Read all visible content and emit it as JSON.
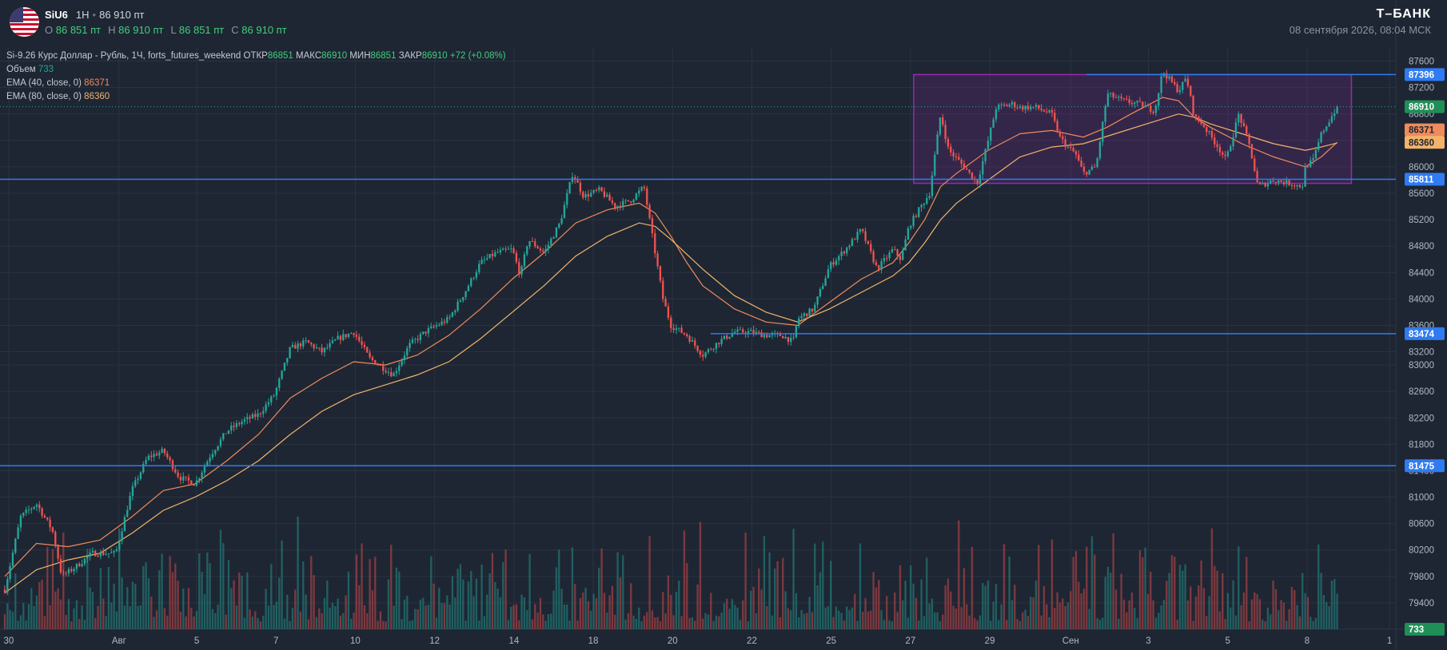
{
  "header": {
    "symbol": "SiU6",
    "interval": "1H",
    "last_price": "86 910 пт",
    "ohlc": {
      "o_label": "O",
      "o": "86 851 пт",
      "h_label": "H",
      "h": "86 910 пт",
      "l_label": "L",
      "l": "86 851 пт",
      "c_label": "C",
      "c": "86 910 пт"
    },
    "brand": "Т–БАНК",
    "datetime": "08 сентября 2026, 08:04 МСК"
  },
  "legend": {
    "series_line": "Si-9.26 Курс Доллар - Рубль, 1Ч, forts_futures_weekend",
    "open_label": "ОТКР",
    "open": "86851",
    "high_label": "МАКС",
    "high": "86910",
    "low_label": "МИН",
    "low": "86851",
    "close_label": "ЗАКР",
    "close": "86910",
    "change": "+72 (+0.08%)",
    "volume_label": "Объем",
    "volume": "733",
    "ema40_label": "EMA (40, close, 0)",
    "ema40": "86371",
    "ema80_label": "EMA (80, close, 0)",
    "ema80": "86360"
  },
  "colors": {
    "background": "#1e2633",
    "grid": "#2a3340",
    "up": "#26a69a",
    "down": "#ef5350",
    "hline": "#2f7bf2",
    "rectangle": "#9c27b0",
    "ema40": "#f08b5c",
    "ema80": "#f2b36b",
    "price_badge": "#1f8f57"
  },
  "chart_data": {
    "type": "candlestick",
    "title": "Si-9.26 Курс Доллар - Рубль, 1Ч, forts_futures_weekend",
    "ylim": [
      79000,
      87800
    ],
    "y_ticks": [
      "87600",
      "87200",
      "86800",
      "86400",
      "86000",
      "85600",
      "85200",
      "84800",
      "84400",
      "84000",
      "83600",
      "83200",
      "83000",
      "82600",
      "82200",
      "81800",
      "81400",
      "81000",
      "80600",
      "80200",
      "79800",
      "79400",
      "79000"
    ],
    "x_ticks": [
      {
        "label": "30",
        "t": 0.25
      },
      {
        "label": "Авг",
        "t": 7.2
      },
      {
        "label": "5",
        "t": 12.1
      },
      {
        "label": "7",
        "t": 17.1
      },
      {
        "label": "10",
        "t": 22.1
      },
      {
        "label": "12",
        "t": 27.1
      },
      {
        "label": "14",
        "t": 32.1
      },
      {
        "label": "18",
        "t": 37.1
      },
      {
        "label": "20",
        "t": 42.1
      },
      {
        "label": "22",
        "t": 47.1
      },
      {
        "label": "25",
        "t": 52.1
      },
      {
        "label": "27",
        "t": 57.1
      },
      {
        "label": "29",
        "t": 62.1
      },
      {
        "label": "Сен",
        "t": 67.2
      },
      {
        "label": "3",
        "t": 72.1
      },
      {
        "label": "5",
        "t": 77.1
      },
      {
        "label": "8",
        "t": 82.1
      },
      {
        "label": "1",
        "t": 87.3
      }
    ],
    "price_path": [
      [
        0,
        79600
      ],
      [
        1,
        80700
      ],
      [
        2,
        80900
      ],
      [
        3,
        80500
      ],
      [
        3.6,
        79800
      ],
      [
        4.5,
        79950
      ],
      [
        5.5,
        80150
      ],
      [
        7,
        80150
      ],
      [
        8,
        81100
      ],
      [
        9,
        81600
      ],
      [
        10,
        81700
      ],
      [
        11,
        81300
      ],
      [
        12,
        81200
      ],
      [
        13,
        81650
      ],
      [
        14,
        82000
      ],
      [
        15,
        82150
      ],
      [
        16,
        82250
      ],
      [
        17,
        82550
      ],
      [
        18,
        83250
      ],
      [
        19,
        83350
      ],
      [
        20,
        83200
      ],
      [
        21,
        83400
      ],
      [
        22,
        83500
      ],
      [
        23,
        83100
      ],
      [
        24.5,
        82850
      ],
      [
        25.5,
        83300
      ],
      [
        26.5,
        83500
      ],
      [
        28,
        83700
      ],
      [
        29,
        84100
      ],
      [
        30,
        84550
      ],
      [
        31,
        84700
      ],
      [
        32,
        84750
      ],
      [
        32.5,
        84350
      ],
      [
        33,
        84900
      ],
      [
        34,
        84700
      ],
      [
        35,
        85150
      ],
      [
        35.8,
        85900
      ],
      [
        36.5,
        85550
      ],
      [
        37.5,
        85650
      ],
      [
        38.5,
        85400
      ],
      [
        39.5,
        85500
      ],
      [
        40.3,
        85700
      ],
      [
        41,
        84700
      ],
      [
        41.5,
        84000
      ],
      [
        42,
        83600
      ],
      [
        43,
        83450
      ],
      [
        44,
        83150
      ],
      [
        45,
        83350
      ],
      [
        46,
        83500
      ],
      [
        47,
        83500
      ],
      [
        48,
        83450
      ],
      [
        49,
        83450
      ],
      [
        49.7,
        83350
      ],
      [
        50,
        83700
      ],
      [
        51,
        83850
      ],
      [
        52,
        84500
      ],
      [
        53,
        84750
      ],
      [
        54,
        85050
      ],
      [
        55,
        84450
      ],
      [
        56,
        84750
      ],
      [
        56.5,
        84600
      ],
      [
        57,
        85100
      ],
      [
        57.5,
        85300
      ],
      [
        58.3,
        85600
      ],
      [
        59,
        86800
      ],
      [
        59.5,
        86250
      ],
      [
        60.5,
        86000
      ],
      [
        61.3,
        85750
      ],
      [
        62,
        86400
      ],
      [
        62.5,
        86900
      ],
      [
        63.5,
        86950
      ],
      [
        64,
        86900
      ],
      [
        65,
        86900
      ],
      [
        66,
        86800
      ],
      [
        66.5,
        86450
      ],
      [
        67,
        86300
      ],
      [
        67.5,
        86200
      ],
      [
        68,
        85900
      ],
      [
        68.8,
        86000
      ],
      [
        69.5,
        87100
      ],
      [
        70.5,
        87000
      ],
      [
        71.5,
        86950
      ],
      [
        72.5,
        86850
      ],
      [
        73,
        87450
      ],
      [
        74,
        87150
      ],
      [
        74.5,
        87350
      ],
      [
        75,
        86750
      ],
      [
        75.5,
        86650
      ],
      [
        76.5,
        86300
      ],
      [
        77,
        86100
      ],
      [
        77.8,
        86800
      ],
      [
        78.5,
        86300
      ],
      [
        79,
        85700
      ],
      [
        80,
        85800
      ],
      [
        81,
        85750
      ],
      [
        81.8,
        85700
      ],
      [
        82,
        86000
      ],
      [
        82.5,
        86100
      ],
      [
        83,
        86500
      ],
      [
        83.5,
        86700
      ],
      [
        84,
        86910
      ]
    ],
    "ema40_path": [
      [
        0,
        79800
      ],
      [
        2,
        80300
      ],
      [
        4,
        80250
      ],
      [
        6,
        80350
      ],
      [
        8,
        80700
      ],
      [
        10,
        81100
      ],
      [
        12,
        81200
      ],
      [
        14,
        81550
      ],
      [
        16,
        81950
      ],
      [
        18,
        82500
      ],
      [
        20,
        82800
      ],
      [
        22,
        83050
      ],
      [
        24,
        83000
      ],
      [
        26,
        83150
      ],
      [
        28,
        83450
      ],
      [
        30,
        83850
      ],
      [
        32,
        84300
      ],
      [
        34,
        84700
      ],
      [
        36,
        85150
      ],
      [
        38,
        85350
      ],
      [
        40,
        85450
      ],
      [
        41,
        85300
      ],
      [
        42,
        84950
      ],
      [
        43,
        84550
      ],
      [
        44,
        84200
      ],
      [
        46,
        83850
      ],
      [
        48,
        83650
      ],
      [
        50,
        83600
      ],
      [
        52,
        83950
      ],
      [
        54,
        84300
      ],
      [
        56,
        84550
      ],
      [
        57,
        84850
      ],
      [
        58,
        85200
      ],
      [
        59,
        85700
      ],
      [
        60,
        85900
      ],
      [
        62,
        86250
      ],
      [
        64,
        86500
      ],
      [
        66,
        86550
      ],
      [
        68,
        86450
      ],
      [
        69.5,
        86600
      ],
      [
        71,
        86800
      ],
      [
        73,
        87050
      ],
      [
        74,
        87000
      ],
      [
        75,
        86750
      ],
      [
        76,
        86600
      ],
      [
        78,
        86350
      ],
      [
        80,
        86150
      ],
      [
        82,
        86000
      ],
      [
        83,
        86150
      ],
      [
        84,
        86371
      ]
    ],
    "ema80_path": [
      [
        0,
        79550
      ],
      [
        2,
        79900
      ],
      [
        4,
        80050
      ],
      [
        6,
        80150
      ],
      [
        8,
        80450
      ],
      [
        10,
        80800
      ],
      [
        12,
        81000
      ],
      [
        14,
        81250
      ],
      [
        16,
        81550
      ],
      [
        18,
        81950
      ],
      [
        20,
        82300
      ],
      [
        22,
        82550
      ],
      [
        24,
        82700
      ],
      [
        26,
        82850
      ],
      [
        28,
        83050
      ],
      [
        30,
        83400
      ],
      [
        32,
        83800
      ],
      [
        34,
        84200
      ],
      [
        36,
        84650
      ],
      [
        38,
        84950
      ],
      [
        40,
        85150
      ],
      [
        41,
        85100
      ],
      [
        42,
        84900
      ],
      [
        44,
        84450
      ],
      [
        46,
        84050
      ],
      [
        48,
        83800
      ],
      [
        50,
        83650
      ],
      [
        52,
        83850
      ],
      [
        54,
        84100
      ],
      [
        56,
        84350
      ],
      [
        57,
        84550
      ],
      [
        58,
        84850
      ],
      [
        59,
        85200
      ],
      [
        60,
        85450
      ],
      [
        62,
        85800
      ],
      [
        64,
        86150
      ],
      [
        66,
        86300
      ],
      [
        68,
        86350
      ],
      [
        70,
        86500
      ],
      [
        72,
        86650
      ],
      [
        74,
        86800
      ],
      [
        75,
        86750
      ],
      [
        76,
        86650
      ],
      [
        78,
        86500
      ],
      [
        80,
        86350
      ],
      [
        82,
        86250
      ],
      [
        83,
        86300
      ],
      [
        84,
        86360
      ]
    ],
    "horizontal_lines": [
      {
        "price": 87396,
        "label": "87396",
        "start_t": 68.2
      },
      {
        "price": 85811,
        "label": "85811",
        "start_t": -1
      },
      {
        "price": 83474,
        "label": "83474",
        "start_t": 44.5
      },
      {
        "price": 81475,
        "label": "81475",
        "start_t": -1
      }
    ],
    "rectangle": {
      "t1": 57.3,
      "t2": 84.9,
      "price_top": 87396,
      "price_bottom": 85750
    },
    "current_price": {
      "price": 86910,
      "label": "86910"
    },
    "ema_badges": [
      {
        "label": "86371",
        "price": 86371
      },
      {
        "label": "86360",
        "price": 86360
      }
    ],
    "volume_badge": "733",
    "volume_series": {
      "seed": 7,
      "max": 733
    }
  }
}
